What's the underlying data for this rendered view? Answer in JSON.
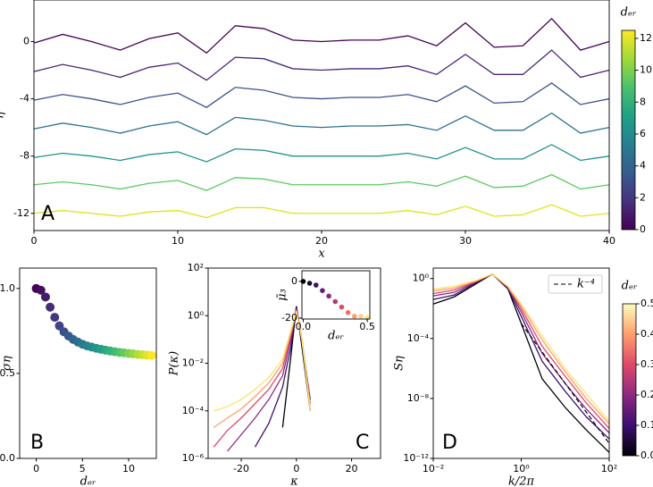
{
  "chart_data": [
    {
      "type": "line",
      "panel_label": "A",
      "xlabel": "x",
      "ylabel": "η",
      "x": [
        0,
        2,
        4,
        6,
        8,
        10,
        12,
        14,
        16,
        18,
        20,
        22,
        24,
        26,
        28,
        30,
        32,
        34,
        36,
        38,
        40
      ],
      "xlim": [
        0,
        40
      ],
      "xticks": [
        0,
        10,
        20,
        30,
        40
      ],
      "ylim": [
        -13.2,
        2.9
      ],
      "yticks": [
        0,
        -4,
        -8,
        -12
      ],
      "grid": false,
      "series": [
        {
          "color": "#440154",
          "values": [
            -0.1,
            0.5,
            0,
            -0.6,
            0.2,
            0.6,
            -0.8,
            1.1,
            0.9,
            0.1,
            0,
            0.1,
            0.1,
            0.4,
            -0.3,
            1.3,
            -0.4,
            -0.3,
            1.6,
            -0.6,
            0
          ]
        },
        {
          "color": "#482677",
          "values": [
            -2.1,
            -1.6,
            -2,
            -2.5,
            -1.8,
            -1.5,
            -2.7,
            -1.1,
            -1.2,
            -1.9,
            -2,
            -1.9,
            -1.9,
            -1.7,
            -2.3,
            -0.9,
            -2.3,
            -2.3,
            -0.6,
            -2.5,
            -2
          ]
        },
        {
          "color": "#3b528b",
          "values": [
            -4.1,
            -3.7,
            -4,
            -4.4,
            -3.9,
            -3.6,
            -4.6,
            -3.2,
            -3.4,
            -3.9,
            -4,
            -3.9,
            -3.9,
            -3.7,
            -4.2,
            -3.1,
            -4.3,
            -4.2,
            -2.9,
            -4.4,
            -4
          ]
        },
        {
          "color": "#2c728e",
          "values": [
            -6.1,
            -5.7,
            -6,
            -6.4,
            -5.9,
            -5.6,
            -6.5,
            -5.3,
            -5.5,
            -5.9,
            -6,
            -5.9,
            -5.9,
            -5.8,
            -6.2,
            -5.2,
            -6.2,
            -6.2,
            -5,
            -6.4,
            -6
          ]
        },
        {
          "color": "#21908d",
          "values": [
            -8.1,
            -7.8,
            -8,
            -8.3,
            -7.9,
            -7.7,
            -8.4,
            -7.5,
            -7.6,
            -8,
            -8,
            -8,
            -8,
            -7.8,
            -8.2,
            -7.4,
            -8.2,
            -8.2,
            -7.2,
            -8.3,
            -8
          ]
        },
        {
          "color": "#5ec962",
          "values": [
            -10,
            -9.8,
            -10,
            -10.3,
            -9.9,
            -9.7,
            -10.4,
            -9.5,
            -9.6,
            -10,
            -10,
            -10,
            -10,
            -9.8,
            -10.1,
            -9.4,
            -10.2,
            -10.1,
            -9.3,
            -10.3,
            -10
          ]
        },
        {
          "color": "#dde318",
          "values": [
            -12,
            -11.8,
            -12,
            -12.2,
            -11.9,
            -11.8,
            -12.3,
            -11.6,
            -11.6,
            -12,
            -12,
            -12,
            -12,
            -11.8,
            -12.1,
            -11.5,
            -12.2,
            -12.1,
            -11.4,
            -12.2,
            -12
          ]
        }
      ],
      "colorbar": {
        "label": "dₑᵣ",
        "lim": [
          0,
          12.5
        ],
        "ticks": [
          0,
          2,
          4,
          6,
          8,
          10,
          12
        ],
        "colormap": [
          "#440154",
          "#46327e",
          "#365c8d",
          "#277f8e",
          "#1fa187",
          "#4ac16d",
          "#a0da39",
          "#fde725"
        ]
      }
    },
    {
      "type": "scatter",
      "panel_label": "B",
      "xlabel": "dₑᵣ",
      "ylabel": "ση",
      "x": [
        0,
        0.5,
        1,
        1.5,
        2,
        2.5,
        3,
        3.5,
        4,
        4.5,
        5,
        5.5,
        6,
        6.5,
        7,
        7.5,
        8,
        8.5,
        9,
        9.5,
        10,
        10.5,
        11,
        11.5,
        12,
        12.5
      ],
      "values": [
        1.0,
        0.99,
        0.95,
        0.89,
        0.83,
        0.78,
        0.745,
        0.72,
        0.7,
        0.685,
        0.672,
        0.662,
        0.655,
        0.648,
        0.642,
        0.637,
        0.632,
        0.628,
        0.624,
        0.621,
        0.618,
        0.615,
        0.612,
        0.61,
        0.608,
        0.606
      ],
      "xlim": [
        -1.8,
        13
      ],
      "xticks": [
        0,
        5,
        10
      ],
      "ylim": [
        0,
        1.12
      ],
      "yticks": [
        {
          "value": 0,
          "label": "0.0"
        },
        {
          "value": 0.5,
          "label": "0.5"
        },
        {
          "value": 1,
          "label": "1.0"
        }
      ],
      "color_by": "x",
      "colormap": [
        "#440154",
        "#46327e",
        "#365c8d",
        "#277f8e",
        "#1fa187",
        "#4ac16d",
        "#a0da39",
        "#fde725"
      ]
    },
    {
      "type": "line",
      "panel_label": "C",
      "xlabel": "κ",
      "ylabel": "P(κ)",
      "log_y": true,
      "x": [
        -30,
        -25,
        -20,
        -15,
        -10,
        -5,
        -2,
        0,
        2,
        5,
        10
      ],
      "xlim": [
        -32,
        30.5
      ],
      "xticks": [
        -20,
        0,
        20
      ],
      "ylim": [
        1e-06,
        100
      ],
      "yticks": [
        {
          "value": 1e-06,
          "label": "10⁻⁶"
        },
        {
          "value": 0.0001,
          "label": "10⁻⁴"
        },
        {
          "value": 0.01,
          "label": "10⁻²"
        },
        {
          "value": 1,
          "label": "10⁰"
        },
        {
          "value": 100,
          "label": "10²"
        }
      ],
      "series": [
        {
          "color": "#000004",
          "values": [
            null,
            null,
            null,
            null,
            null,
            2e-05,
            0.02,
            2.5,
            0.05,
            0.0001,
            null
          ]
        },
        {
          "color": "#3b0f70",
          "values": [
            null,
            null,
            null,
            3e-06,
            3e-05,
            0.001,
            0.05,
            2.5,
            0.08,
            0.0003,
            null
          ]
        },
        {
          "color": "#8c2981",
          "values": [
            null,
            2e-06,
            1e-05,
            5e-05,
            0.0003,
            0.003,
            0.1,
            2,
            0.1,
            0.0002,
            null
          ]
        },
        {
          "color": "#de4968",
          "values": [
            3e-06,
            1.5e-05,
            5e-05,
            0.0002,
            0.0008,
            0.006,
            0.15,
            1.8,
            0.1,
            0.0002,
            null
          ]
        },
        {
          "color": "#fe9f6d",
          "values": [
            2e-05,
            5e-05,
            0.00012,
            0.0004,
            0.0015,
            0.01,
            0.2,
            1.6,
            0.1,
            0.00015,
            null
          ]
        },
        {
          "color": "#f8e46c",
          "values": [
            0.0001,
            0.00015,
            0.0003,
            0.0008,
            0.0025,
            0.015,
            0.25,
            1.5,
            0.1,
            0.0001,
            null
          ]
        }
      ]
    },
    {
      "type": "scatter",
      "inset": true,
      "xlabel": "dₑᵣ",
      "ylabel": "μ̄₃",
      "x": [
        0,
        0.05,
        0.1,
        0.15,
        0.2,
        0.25,
        0.3,
        0.35,
        0.4,
        0.45,
        0.5
      ],
      "values": [
        0,
        -1,
        -2,
        -5,
        -8,
        -11,
        -14,
        -17,
        -19,
        -19,
        -20
      ],
      "xlim": [
        -0.01,
        0.52
      ],
      "xticks": [
        {
          "value": 0,
          "label": "0.0"
        },
        {
          "value": 0.5,
          "label": "0.5"
        }
      ],
      "ylim": [
        -20.5,
        5.8
      ],
      "yticks": [
        0,
        -20
      ],
      "colors": [
        "#000004",
        "#140e36",
        "#3b0f70",
        "#641a80",
        "#8c2981",
        "#b73779",
        "#de4968",
        "#f7705c",
        "#fe9f6d",
        "#fecf92",
        "#f8e46c"
      ]
    },
    {
      "type": "line",
      "panel_label": "D",
      "xlabel": "k/2π",
      "ylabel": "Sη",
      "log_x": true,
      "log_y": true,
      "x": [
        0.01,
        0.03,
        0.1,
        0.22,
        0.5,
        1,
        3,
        10,
        30,
        100
      ],
      "xlim": [
        0.01,
        100
      ],
      "xticks": [
        {
          "value": 0.01,
          "label": "10⁻²"
        },
        {
          "value": 1,
          "label": "10⁰"
        },
        {
          "value": 100,
          "label": "10²"
        }
      ],
      "ylim": [
        1e-12,
        5
      ],
      "yticks": [
        {
          "value": 1e-12,
          "label": "10⁻¹²"
        },
        {
          "value": 1e-08,
          "label": "10⁻⁸"
        },
        {
          "value": 0.0001,
          "label": "10⁻⁴"
        },
        {
          "value": 1,
          "label": "10⁰"
        }
      ],
      "series": [
        {
          "color": "#000004",
          "values": [
            0.02,
            0.06,
            0.5,
            2,
            0.2,
            0.001,
            2e-07,
            2.5e-09,
            8e-11,
            2.5e-12
          ]
        },
        {
          "color": "#3b0f70",
          "values": [
            0.04,
            0.08,
            0.6,
            2,
            0.22,
            0.003,
            3e-06,
            3e-08,
            6e-10,
            2e-11
          ]
        },
        {
          "color": "#8c2981",
          "values": [
            0.07,
            0.12,
            0.65,
            2,
            0.25,
            0.006,
            1e-05,
            1e-07,
            2e-09,
            5e-11
          ]
        },
        {
          "color": "#de4968",
          "values": [
            0.1,
            0.17,
            0.7,
            2,
            0.27,
            0.01,
            3e-05,
            3e-07,
            5e-09,
            1e-10
          ]
        },
        {
          "color": "#fe9f6d",
          "values": [
            0.15,
            0.23,
            0.75,
            2,
            0.29,
            0.015,
            8e-05,
            6e-07,
            1e-08,
            2e-10
          ]
        },
        {
          "color": "#f8e46c",
          "values": [
            0.2,
            0.3,
            0.8,
            2,
            0.3,
            0.02,
            0.00015,
            1e-06,
            2e-08,
            3e-10
          ]
        },
        {
          "name": "k⁻⁴",
          "color": "#000000",
          "dash": true,
          "x": [
            1,
            100
          ],
          "values": [
            0.001,
            1e-11
          ]
        }
      ],
      "legend": "upper right",
      "colorbar": {
        "label": "dₑᵣ",
        "lim": [
          0,
          0.5
        ],
        "ticks": [
          {
            "value": 0,
            "label": "0.0"
          },
          {
            "value": 0.1,
            "label": "0.1"
          },
          {
            "value": 0.2,
            "label": "0.2"
          },
          {
            "value": 0.3,
            "label": "0.3"
          },
          {
            "value": 0.4,
            "label": "0.4"
          },
          {
            "value": 0.5,
            "label": "0.5"
          }
        ],
        "colormap": [
          "#000004",
          "#3b0f70",
          "#8c2981",
          "#de4968",
          "#fe9f6d",
          "#fcfdbf"
        ]
      }
    }
  ]
}
